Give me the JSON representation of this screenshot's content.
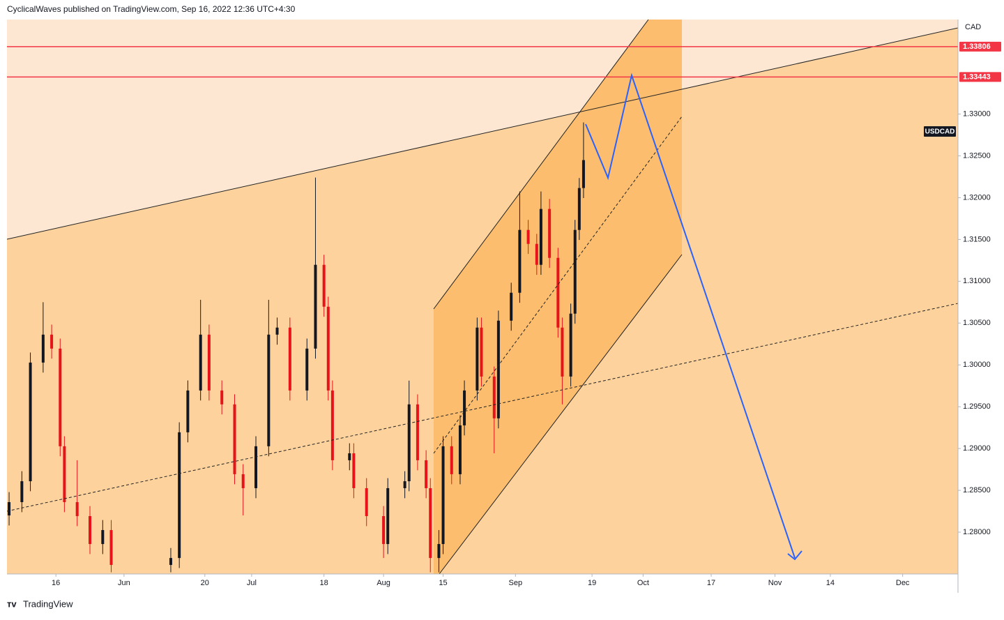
{
  "header": "CyclicalWaves published on TradingView.com, Sep 16, 2022 12:36 UTC+4:30",
  "footer": "TradingView",
  "chart_data": {
    "type": "candlestick",
    "symbol": "USDCAD",
    "currency": "CAD",
    "up_color": "#131722",
    "down_color": "#e8131a",
    "x": [
      125,
      128,
      130,
      133,
      135,
      137,
      138,
      141,
      144,
      147,
      149,
      163,
      165,
      167,
      170,
      172,
      175,
      178,
      180,
      183,
      186,
      188,
      191,
      195,
      197,
      199,
      200,
      201,
      205,
      206,
      209,
      213,
      214,
      218,
      219,
      221,
      223,
      224,
      226,
      227,
      229,
      231,
      232,
      235,
      236,
      239,
      240,
      243,
      245,
      247,
      249,
      250,
      252,
      254,
      255,
      257,
      258,
      259,
      260
    ],
    "open": [
      1.282,
      1.28359,
      1.28609,
      1.30028,
      1.30362,
      1.30195,
      1.29027,
      1.28359,
      1.28192,
      1.27858,
      1.28025,
      1.27608,
      1.27691,
      1.29194,
      1.29694,
      1.30362,
      1.29694,
      1.29528,
      1.28693,
      1.28526,
      1.29027,
      1.30362,
      1.30446,
      1.29694,
      1.30195,
      1.31197,
      1.30696,
      1.29694,
      1.2886,
      1.28943,
      1.28526,
      1.28192,
      1.27858,
      1.28526,
      1.28609,
      1.29528,
      1.2886,
      1.28526,
      1.27691,
      1.27858,
      1.29027,
      1.28693,
      1.29277,
      1.29694,
      1.30446,
      1.29861,
      1.29361,
      1.30529,
      1.30863,
      1.31614,
      1.31447,
      1.31197,
      1.31865,
      1.3128,
      1.30446,
      1.29861,
      1.30613,
      1.31614,
      1.32115
    ],
    "high": [
      1.28479,
      1.28729,
      1.30148,
      1.3075,
      1.30482,
      1.30315,
      1.29147,
      1.2886,
      1.28312,
      1.28145,
      1.28145,
      1.27811,
      1.29314,
      1.29814,
      1.30779,
      1.30482,
      1.29814,
      1.29648,
      1.28813,
      1.29147,
      1.30779,
      1.30566,
      1.30566,
      1.30315,
      1.3224,
      1.31317,
      1.30816,
      1.29814,
      1.29063,
      1.29063,
      1.28646,
      1.28312,
      1.28646,
      1.28729,
      1.29812,
      1.29648,
      1.2898,
      1.28646,
      1.28025,
      1.29147,
      1.29147,
      1.29397,
      1.29814,
      1.30566,
      1.30566,
      1.29981,
      1.30649,
      1.30983,
      1.32074,
      1.31734,
      1.31567,
      1.32074,
      1.31985,
      1.314,
      1.30566,
      1.30733,
      1.31734,
      1.32235,
      1.329
    ],
    "low": [
      1.2808,
      1.28239,
      1.28489,
      1.29908,
      1.30075,
      1.28907,
      1.28239,
      1.28072,
      1.27738,
      1.27738,
      1.2752,
      1.2752,
      1.27571,
      1.29074,
      1.29574,
      1.29574,
      1.29408,
      1.28573,
      1.282,
      1.28406,
      1.28907,
      1.30242,
      1.29574,
      1.29574,
      1.30075,
      1.30576,
      1.29574,
      1.2874,
      1.2874,
      1.28406,
      1.28072,
      1.27691,
      1.27738,
      1.28406,
      1.28489,
      1.2874,
      1.28406,
      1.2752,
      1.2752,
      1.27738,
      1.28573,
      1.28573,
      1.29157,
      1.29574,
      1.29741,
      1.28943,
      1.29241,
      1.30409,
      1.30743,
      1.31327,
      1.31077,
      1.31077,
      1.3116,
      1.30326,
      1.29528,
      1.29741,
      1.30493,
      1.31494,
      1.31995
    ],
    "close": [
      1.28359,
      1.28609,
      1.30028,
      1.30362,
      1.30195,
      1.29027,
      1.28359,
      1.28192,
      1.27858,
      1.28025,
      1.27608,
      1.27691,
      1.29194,
      1.29694,
      1.30362,
      1.29694,
      1.29528,
      1.28693,
      1.28526,
      1.29027,
      1.30362,
      1.30446,
      1.29694,
      1.30195,
      1.31197,
      1.30696,
      1.29694,
      1.2886,
      1.28943,
      1.28526,
      1.28192,
      1.27858,
      1.28526,
      1.28609,
      1.29528,
      1.2886,
      1.28526,
      1.27691,
      1.27858,
      1.29027,
      1.28693,
      1.29277,
      1.29694,
      1.30446,
      1.29861,
      1.29361,
      1.30529,
      1.30863,
      1.31614,
      1.31447,
      1.31197,
      1.31865,
      1.3128,
      1.30446,
      1.29861,
      1.30613,
      1.31614,
      1.32115,
      1.32449
    ],
    "xlim": [
      124.5,
      348
    ],
    "xticks": [
      {
        "value": 136,
        "label": "16"
      },
      {
        "value": 152,
        "label": "Jun"
      },
      {
        "value": 171,
        "label": "20"
      },
      {
        "value": 182,
        "label": "Jul"
      },
      {
        "value": 199,
        "label": "18"
      },
      {
        "value": 213,
        "label": "Aug"
      },
      {
        "value": 227,
        "label": "15"
      },
      {
        "value": 244,
        "label": "Sep"
      },
      {
        "value": 262,
        "label": "19"
      },
      {
        "value": 274,
        "label": "Oct"
      },
      {
        "value": 290,
        "label": "17"
      },
      {
        "value": 305,
        "label": "Nov"
      },
      {
        "value": 318,
        "label": "14"
      },
      {
        "value": 335,
        "label": "Dec"
      }
    ],
    "ylim": [
      1.275,
      1.3413
    ],
    "yticks": [
      {
        "value": 1.28,
        "label": "1.28000"
      },
      {
        "value": 1.285,
        "label": "1.28500"
      },
      {
        "value": 1.29,
        "label": "1.29000"
      },
      {
        "value": 1.295,
        "label": "1.29500"
      },
      {
        "value": 1.3,
        "label": "1.30000"
      },
      {
        "value": 1.305,
        "label": "1.30500"
      },
      {
        "value": 1.31,
        "label": "1.31000"
      },
      {
        "value": 1.315,
        "label": "1.31500"
      },
      {
        "value": 1.32,
        "label": "1.32000"
      },
      {
        "value": 1.325,
        "label": "1.32500"
      },
      {
        "value": 1.33,
        "label": "1.33000"
      }
    ],
    "price_lines": [
      {
        "value": 1.33806,
        "color": "#f23645"
      },
      {
        "value": 1.33443,
        "color": "#f23645"
      }
    ]
  }
}
